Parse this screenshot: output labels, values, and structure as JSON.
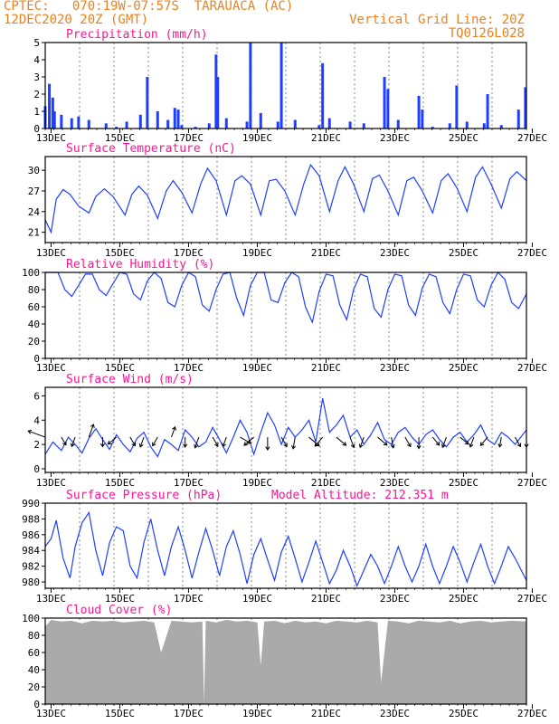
{
  "header": {
    "line1": "CPTEC:   070:19W-07:57S  TARAUACA (AC)",
    "line2": "12DEC2020 20Z (GMT)",
    "grid_note": "Vertical Grid Line: 20Z",
    "code": "TQ0126L028"
  },
  "colors": {
    "title": "#ff1493",
    "header": "#e8821e",
    "series": "#1f3fff",
    "cloud": "#aaaaaa",
    "arrow": "#000000"
  },
  "x_tick_labels": [
    "13DEC",
    "15DEC",
    "17DEC",
    "19DEC",
    "21DEC",
    "23DEC",
    "25DEC",
    "27DEC"
  ],
  "chart_data": [
    {
      "id": "precip",
      "type": "bar",
      "title": "Precipitation (mm/h)",
      "ylim": [
        0,
        5
      ],
      "yticks": [
        "0",
        "1",
        "2",
        "3",
        "4",
        "5"
      ],
      "x_days": [
        12.83,
        12.95,
        13.05,
        13.1,
        13.3,
        13.6,
        13.8,
        14.1,
        14.6,
        14.9,
        15.2,
        15.6,
        15.8,
        16.1,
        16.4,
        16.6,
        16.7,
        16.8,
        17.2,
        17.6,
        17.8,
        17.85,
        18.1,
        18.7,
        18.8,
        19.1,
        19.6,
        19.7,
        20.1,
        20.8,
        20.9,
        21.1,
        21.7,
        22.1,
        22.7,
        22.8,
        23.1,
        23.7,
        23.8,
        24.1,
        24.6,
        24.8,
        25.1,
        25.6,
        25.7,
        26.1,
        26.6,
        26.8
      ],
      "values": [
        1.3,
        2.6,
        1.8,
        1.0,
        0.8,
        0.6,
        0.7,
        0.5,
        0.3,
        0.1,
        0.4,
        0.8,
        3.0,
        1.0,
        0.5,
        1.2,
        1.1,
        0.2,
        0.1,
        0.3,
        4.3,
        3.0,
        0.6,
        0.4,
        5.0,
        0.9,
        0.4,
        5.0,
        0.5,
        0.2,
        3.8,
        0.6,
        0.4,
        0.3,
        3.0,
        2.3,
        0.5,
        1.9,
        1.1,
        0.1,
        0.3,
        2.5,
        0.4,
        0.3,
        2.0,
        0.2,
        1.1,
        2.4
      ]
    },
    {
      "id": "temp",
      "type": "line",
      "title": "Surface Temperature (nC)",
      "ylim": [
        19.5,
        32
      ],
      "yticks": [
        "21",
        "24",
        "27",
        "30"
      ],
      "x_days": [
        12.83,
        13.0,
        13.15,
        13.35,
        13.55,
        13.8,
        14.1,
        14.3,
        14.55,
        14.8,
        15.15,
        15.35,
        15.55,
        15.8,
        16.1,
        16.35,
        16.55,
        16.8,
        17.1,
        17.35,
        17.55,
        17.8,
        18.1,
        18.35,
        18.55,
        18.8,
        19.1,
        19.35,
        19.55,
        19.8,
        20.1,
        20.35,
        20.55,
        20.8,
        21.1,
        21.35,
        21.55,
        21.8,
        22.1,
        22.35,
        22.55,
        22.8,
        23.1,
        23.35,
        23.55,
        23.8,
        24.1,
        24.35,
        24.55,
        24.8,
        25.1,
        25.35,
        25.55,
        25.8,
        26.1,
        26.35,
        26.55,
        26.83
      ],
      "values": [
        22.8,
        21.0,
        25.8,
        27.2,
        26.5,
        24.8,
        23.8,
        26.2,
        27.3,
        26.2,
        23.5,
        26.5,
        27.7,
        26.4,
        23.0,
        27.0,
        28.5,
        26.8,
        23.8,
        28.0,
        30.3,
        28.5,
        23.5,
        28.5,
        29.2,
        28.0,
        23.5,
        28.5,
        28.7,
        27.0,
        23.5,
        28.0,
        30.8,
        29.2,
        24.0,
        28.5,
        30.5,
        28.0,
        24.0,
        28.8,
        29.3,
        27.0,
        23.5,
        28.5,
        29.0,
        27.0,
        23.8,
        28.5,
        29.5,
        27.5,
        24.0,
        29.0,
        30.5,
        28.0,
        24.5,
        28.8,
        29.8,
        28.5
      ]
    },
    {
      "id": "rh",
      "type": "line",
      "title": "Relative Humidity (%)",
      "ylim": [
        0,
        100
      ],
      "yticks": [
        "0",
        "20",
        "40",
        "60",
        "80",
        "100"
      ],
      "x_days": [
        12.83,
        13.0,
        13.2,
        13.4,
        13.6,
        13.8,
        14.0,
        14.2,
        14.4,
        14.6,
        14.8,
        15.0,
        15.2,
        15.4,
        15.6,
        15.8,
        16.0,
        16.2,
        16.4,
        16.6,
        16.8,
        17.0,
        17.2,
        17.4,
        17.6,
        17.8,
        18.0,
        18.2,
        18.4,
        18.6,
        18.8,
        19.0,
        19.2,
        19.4,
        19.6,
        19.8,
        20.0,
        20.2,
        20.4,
        20.6,
        20.8,
        21.0,
        21.2,
        21.4,
        21.6,
        21.8,
        22.0,
        22.2,
        22.4,
        22.6,
        22.8,
        23.0,
        23.2,
        23.4,
        23.6,
        23.8,
        24.0,
        24.2,
        24.4,
        24.6,
        24.8,
        25.0,
        25.2,
        25.4,
        25.6,
        25.8,
        26.0,
        26.2,
        26.4,
        26.6,
        26.83
      ],
      "values": [
        100,
        100,
        100,
        80,
        72,
        85,
        98,
        98,
        80,
        73,
        87,
        100,
        98,
        75,
        68,
        90,
        100,
        93,
        65,
        60,
        85,
        100,
        95,
        62,
        55,
        80,
        98,
        100,
        70,
        50,
        85,
        100,
        100,
        68,
        65,
        88,
        100,
        95,
        60,
        42,
        78,
        98,
        96,
        62,
        45,
        80,
        98,
        95,
        58,
        48,
        80,
        98,
        96,
        62,
        50,
        82,
        98,
        95,
        65,
        52,
        80,
        98,
        96,
        68,
        60,
        85,
        100,
        92,
        65,
        58,
        75
      ]
    },
    {
      "id": "wind",
      "type": "line",
      "title": "Surface Wind (m/s)",
      "ylim": [
        -0.3,
        6.7
      ],
      "yticks": [
        "0",
        "2",
        "4",
        "6"
      ],
      "x_days": [
        12.83,
        13.05,
        13.3,
        13.5,
        13.7,
        13.9,
        14.1,
        14.3,
        14.5,
        14.7,
        14.9,
        15.1,
        15.3,
        15.5,
        15.7,
        15.9,
        16.1,
        16.3,
        16.5,
        16.7,
        16.9,
        17.1,
        17.3,
        17.5,
        17.7,
        17.9,
        18.1,
        18.3,
        18.5,
        18.7,
        18.9,
        19.1,
        19.3,
        19.5,
        19.7,
        19.9,
        20.1,
        20.3,
        20.5,
        20.7,
        20.9,
        21.1,
        21.3,
        21.5,
        21.7,
        21.9,
        22.1,
        22.3,
        22.5,
        22.7,
        22.9,
        23.1,
        23.3,
        23.5,
        23.7,
        23.9,
        24.1,
        24.3,
        24.5,
        24.7,
        24.9,
        25.1,
        25.3,
        25.5,
        25.7,
        25.9,
        26.1,
        26.3,
        26.5,
        26.83
      ],
      "values": [
        1.2,
        2.2,
        1.5,
        2.6,
        2.0,
        1.3,
        2.5,
        3.3,
        2.4,
        1.6,
        2.8,
        2.0,
        1.4,
        2.5,
        3.0,
        1.8,
        1.0,
        2.4,
        2.0,
        1.5,
        3.2,
        2.6,
        1.8,
        2.2,
        3.4,
        2.4,
        1.3,
        2.6,
        4.0,
        3.0,
        1.2,
        3.0,
        4.6,
        3.6,
        2.0,
        3.4,
        2.6,
        3.2,
        4.0,
        2.2,
        5.8,
        3.0,
        3.6,
        4.4,
        2.6,
        3.2,
        2.0,
        2.8,
        3.8,
        2.4,
        2.0,
        3.0,
        3.4,
        2.6,
        2.0,
        2.8,
        3.2,
        2.4,
        1.8,
        2.6,
        3.0,
        2.2,
        2.8,
        3.6,
        2.4,
        2.0,
        3.0,
        2.6,
        2.0,
        3.2
      ],
      "arrows": {
        "x_days": [
          12.83,
          13.3,
          13.7,
          14.1,
          14.5,
          14.9,
          15.3,
          15.7,
          16.1,
          16.5,
          16.9,
          17.3,
          17.7,
          18.1,
          18.5,
          18.9,
          19.3,
          19.7,
          20.1,
          20.5,
          20.9,
          21.3,
          21.7,
          22.1,
          22.5,
          22.9,
          23.3,
          23.7,
          24.1,
          24.5,
          24.9,
          25.3,
          25.7,
          26.1,
          26.5,
          26.83
        ],
        "angle_deg": [
          160,
          300,
          250,
          70,
          270,
          220,
          300,
          250,
          240,
          70,
          270,
          250,
          300,
          250,
          330,
          220,
          270,
          300,
          260,
          320,
          230,
          320,
          290,
          250,
          320,
          280,
          300,
          270,
          310,
          250,
          320,
          250,
          230,
          260,
          300,
          270
        ],
        "speed": [
          2.8,
          0.8,
          1.0,
          1.8,
          0.9,
          1.2,
          1.0,
          1.1,
          1.0,
          1.2,
          1.0,
          1.3,
          1.1,
          1.0,
          1.5,
          1.6,
          1.6,
          1.2,
          1.4,
          1.8,
          1.4,
          1.6,
          1.2,
          1.2,
          1.5,
          1.2,
          1.2,
          1.3,
          1.1,
          1.2,
          1.2,
          1.1,
          1.2,
          1.0,
          1.2,
          1.0
        ]
      }
    },
    {
      "id": "pressure",
      "type": "line",
      "title": "Surface Pressure (hPa)",
      "annotation": "Model Altitude: 212.351 m",
      "ylim": [
        979.2,
        990
      ],
      "yticks": [
        "980",
        "982",
        "984",
        "986",
        "988",
        "990"
      ],
      "x_days": [
        12.83,
        13.0,
        13.15,
        13.35,
        13.55,
        13.7,
        13.9,
        14.1,
        14.3,
        14.5,
        14.7,
        14.9,
        15.1,
        15.3,
        15.5,
        15.7,
        15.9,
        16.1,
        16.3,
        16.5,
        16.7,
        16.9,
        17.1,
        17.3,
        17.5,
        17.7,
        17.9,
        18.1,
        18.3,
        18.5,
        18.7,
        18.9,
        19.1,
        19.3,
        19.5,
        19.7,
        19.9,
        20.1,
        20.3,
        20.5,
        20.7,
        20.9,
        21.1,
        21.3,
        21.5,
        21.7,
        21.9,
        22.1,
        22.3,
        22.5,
        22.7,
        22.9,
        23.1,
        23.3,
        23.5,
        23.7,
        23.9,
        24.1,
        24.3,
        24.5,
        24.7,
        24.9,
        25.1,
        25.3,
        25.5,
        25.7,
        25.9,
        26.1,
        26.3,
        26.5,
        26.83
      ],
      "values": [
        984.5,
        985.5,
        987.8,
        983.0,
        980.5,
        984.5,
        987.5,
        988.8,
        984.0,
        980.8,
        985.0,
        987.0,
        986.5,
        982.0,
        980.5,
        985.0,
        988.0,
        984.0,
        980.8,
        984.5,
        987.0,
        984.0,
        980.5,
        983.8,
        986.8,
        984.0,
        980.8,
        984.5,
        986.5,
        983.5,
        979.8,
        983.5,
        985.5,
        982.8,
        980.2,
        983.8,
        985.8,
        983.0,
        980.0,
        982.5,
        985.2,
        982.5,
        979.8,
        981.5,
        984.0,
        982.0,
        979.5,
        981.5,
        983.5,
        982.0,
        979.8,
        982.0,
        984.5,
        982.0,
        980.0,
        982.0,
        984.8,
        982.0,
        979.8,
        982.0,
        984.5,
        982.5,
        980.0,
        982.5,
        984.8,
        982.0,
        979.8,
        982.0,
        984.5,
        983.0,
        980.2
      ]
    },
    {
      "id": "cloud",
      "type": "area",
      "title": "Cloud Cover (%)",
      "ylim": [
        0,
        100
      ],
      "yticks": [
        "0",
        "20",
        "40",
        "60",
        "80",
        "100"
      ],
      "x_days": [
        12.83,
        13.0,
        13.3,
        13.6,
        13.9,
        14.2,
        14.5,
        14.8,
        15.1,
        15.4,
        15.7,
        16.0,
        16.2,
        16.5,
        16.8,
        17.1,
        17.4,
        17.45,
        17.5,
        17.8,
        18.1,
        18.4,
        18.7,
        19.0,
        19.1,
        19.2,
        19.5,
        19.8,
        20.1,
        20.4,
        20.7,
        21.0,
        21.3,
        21.6,
        21.9,
        22.2,
        22.5,
        22.6,
        22.8,
        23.1,
        23.4,
        23.7,
        24.0,
        24.3,
        24.6,
        24.9,
        25.2,
        25.5,
        25.8,
        26.1,
        26.4,
        26.83
      ],
      "values": [
        90,
        98,
        96,
        97,
        94,
        97,
        96,
        97,
        95,
        96,
        97,
        95,
        60,
        97,
        96,
        95,
        96,
        2,
        97,
        95,
        98,
        96,
        97,
        95,
        45,
        96,
        97,
        94,
        97,
        95,
        96,
        94,
        97,
        96,
        95,
        97,
        95,
        25,
        97,
        96,
        94,
        97,
        96,
        95,
        97,
        94,
        96,
        97,
        95,
        96,
        97,
        96
      ]
    }
  ]
}
